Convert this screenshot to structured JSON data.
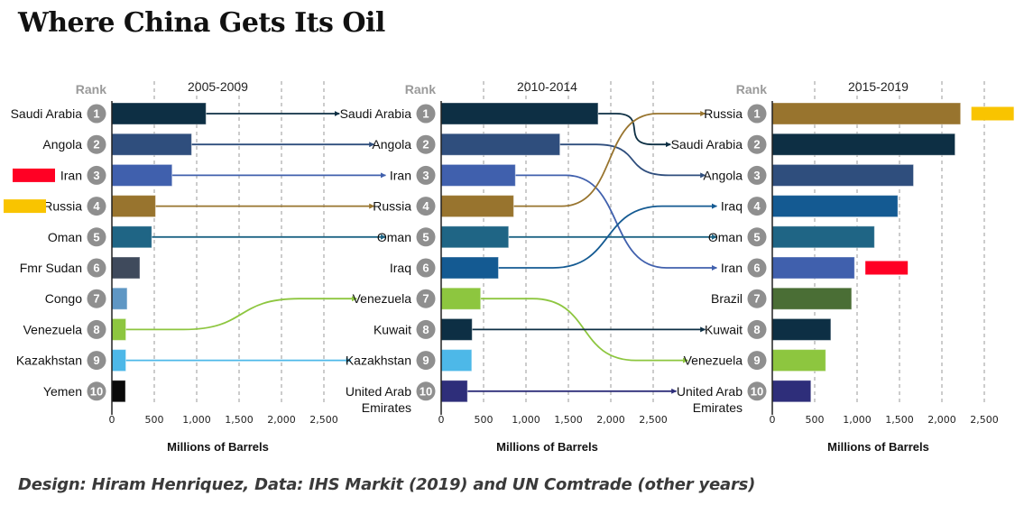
{
  "title": "Where China Gets Its Oil",
  "credit": "Design: Hiram Henriquez, Data: IHS Markit (2019) and UN Comtrade (other years)",
  "chart_data": [
    {
      "type": "bar",
      "title": "2005-2009",
      "rank_label": "Rank",
      "xlabel": "Millions of Barrels",
      "xlim": [
        0,
        2500
      ],
      "xticks": [
        "0",
        "500",
        "1,000",
        "1,500",
        "2,000",
        "2,500"
      ],
      "xtick_values": [
        0,
        500,
        1000,
        1500,
        2000,
        2500
      ],
      "grid": true,
      "categories": [
        "Saudi Arabia",
        "Angola",
        "Iran",
        "Russia",
        "Oman",
        "Fmr Sudan",
        "Congo",
        "Venezuela",
        "Kazakhstan",
        "Yemen"
      ],
      "values": [
        1110,
        940,
        710,
        515,
        470,
        330,
        180,
        165,
        165,
        160
      ],
      "colors": [
        "#0d2f44",
        "#2f4e7d",
        "#4060ad",
        "#98742e",
        "#1f6585",
        "#3f4a5c",
        "#5f97c4",
        "#8dc63f",
        "#4db8e8",
        "#0a0a0a"
      ],
      "highlight_markers": [
        {
          "category": "Iran",
          "color": "#ff0024"
        },
        {
          "category": "Russia",
          "color": "#f9c400"
        }
      ]
    },
    {
      "type": "bar",
      "title": "2010-2014",
      "rank_label": "Rank",
      "xlabel": "Millions of Barrels",
      "xlim": [
        0,
        2500
      ],
      "xticks": [
        "0",
        "500",
        "1,000",
        "1,500",
        "2,000",
        "2,500"
      ],
      "xtick_values": [
        0,
        500,
        1000,
        1500,
        2000,
        2500
      ],
      "grid": true,
      "categories": [
        "Saudi Arabia",
        "Angola",
        "Iran",
        "Russia",
        "Oman",
        "Iraq",
        "Venezuela",
        "Kuwait",
        "Kazakhstan",
        "United Arab Emirates"
      ],
      "values": [
        1850,
        1400,
        875,
        855,
        795,
        675,
        465,
        365,
        360,
        310
      ],
      "colors": [
        "#0d2f44",
        "#2f4e7d",
        "#4060ad",
        "#98742e",
        "#1f6585",
        "#145a92",
        "#8dc63f",
        "#0d2f44",
        "#4db8e8",
        "#2e2e7a"
      ]
    },
    {
      "type": "bar",
      "title": "2015-2019",
      "rank_label": "Rank",
      "xlabel": "Millions of Barrels",
      "xlim": [
        0,
        2500
      ],
      "xticks": [
        "0",
        "500",
        "1,000",
        "1,500",
        "2,000",
        "2,500"
      ],
      "xtick_values": [
        0,
        500,
        1000,
        1500,
        2000,
        2500
      ],
      "grid": true,
      "categories": [
        "Russia",
        "Saudi Arabia",
        "Angola",
        "Iraq",
        "Oman",
        "Iran",
        "Brazil",
        "Kuwait",
        "Venezuela",
        "United Arab Emirates"
      ],
      "values": [
        2220,
        2155,
        1665,
        1480,
        1205,
        970,
        935,
        690,
        630,
        455
      ],
      "colors": [
        "#98742e",
        "#0d2f44",
        "#2f4e7d",
        "#145a92",
        "#1f6585",
        "#4060ad",
        "#4a6e35",
        "#0d2f44",
        "#8dc63f",
        "#2e2e7a"
      ],
      "highlight_markers": [
        {
          "category": "Russia",
          "color": "#f9c400"
        },
        {
          "category": "Iran",
          "color": "#ff0024"
        }
      ]
    }
  ],
  "connectors": [
    {
      "from_panel": 0,
      "from_rank": 1,
      "to_panel": 1,
      "to_rank": 1,
      "color": "#0d2f44"
    },
    {
      "from_panel": 0,
      "from_rank": 2,
      "to_panel": 1,
      "to_rank": 2,
      "color": "#2f4e7d"
    },
    {
      "from_panel": 0,
      "from_rank": 3,
      "to_panel": 1,
      "to_rank": 3,
      "color": "#4060ad"
    },
    {
      "from_panel": 0,
      "from_rank": 4,
      "to_panel": 1,
      "to_rank": 4,
      "color": "#98742e"
    },
    {
      "from_panel": 0,
      "from_rank": 5,
      "to_panel": 1,
      "to_rank": 5,
      "color": "#1f6585"
    },
    {
      "from_panel": 0,
      "from_rank": 8,
      "to_panel": 1,
      "to_rank": 7,
      "color": "#8dc63f"
    },
    {
      "from_panel": 0,
      "from_rank": 9,
      "to_panel": 1,
      "to_rank": 9,
      "color": "#4db8e8"
    },
    {
      "from_panel": 1,
      "from_rank": 1,
      "to_panel": 2,
      "to_rank": 2,
      "color": "#0d2f44"
    },
    {
      "from_panel": 1,
      "from_rank": 2,
      "to_panel": 2,
      "to_rank": 3,
      "color": "#2f4e7d"
    },
    {
      "from_panel": 1,
      "from_rank": 3,
      "to_panel": 2,
      "to_rank": 6,
      "color": "#4060ad"
    },
    {
      "from_panel": 1,
      "from_rank": 4,
      "to_panel": 2,
      "to_rank": 1,
      "color": "#98742e"
    },
    {
      "from_panel": 1,
      "from_rank": 5,
      "to_panel": 2,
      "to_rank": 5,
      "color": "#1f6585"
    },
    {
      "from_panel": 1,
      "from_rank": 6,
      "to_panel": 2,
      "to_rank": 4,
      "color": "#145a92"
    },
    {
      "from_panel": 1,
      "from_rank": 7,
      "to_panel": 2,
      "to_rank": 9,
      "color": "#8dc63f"
    },
    {
      "from_panel": 1,
      "from_rank": 8,
      "to_panel": 2,
      "to_rank": 8,
      "color": "#0d2f44"
    },
    {
      "from_panel": 1,
      "from_rank": 10,
      "to_panel": 2,
      "to_rank": 10,
      "color": "#2e2e7a"
    }
  ]
}
